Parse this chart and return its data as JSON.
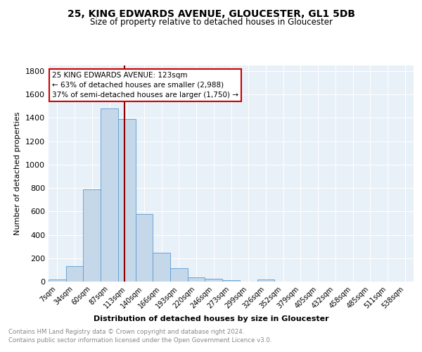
{
  "title1": "25, KING EDWARDS AVENUE, GLOUCESTER, GL1 5DB",
  "title2": "Size of property relative to detached houses in Gloucester",
  "xlabel": "Distribution of detached houses by size in Gloucester",
  "ylabel": "Number of detached properties",
  "bin_labels": [
    "7sqm",
    "34sqm",
    "60sqm",
    "87sqm",
    "113sqm",
    "140sqm",
    "166sqm",
    "193sqm",
    "220sqm",
    "246sqm",
    "273sqm",
    "299sqm",
    "326sqm",
    "352sqm",
    "379sqm",
    "405sqm",
    "432sqm",
    "458sqm",
    "485sqm",
    "511sqm",
    "538sqm"
  ],
  "bar_heights": [
    20,
    135,
    790,
    1480,
    1390,
    575,
    248,
    115,
    35,
    25,
    15,
    0,
    20,
    0,
    0,
    0,
    0,
    0,
    0,
    0,
    0
  ],
  "bar_color": "#c5d8ea",
  "bar_edge_color": "#5b9bd5",
  "subject_line_color": "#8b0000",
  "annotation_line1": "25 KING EDWARDS AVENUE: 123sqm",
  "annotation_line2": "← 63% of detached houses are smaller (2,988)",
  "annotation_line3": "37% of semi-detached houses are larger (1,750) →",
  "annotation_box_color": "#ffffff",
  "annotation_box_edge": "#cc0000",
  "ylim": [
    0,
    1850
  ],
  "yticks": [
    0,
    200,
    400,
    600,
    800,
    1000,
    1200,
    1400,
    1600,
    1800
  ],
  "footer1": "Contains HM Land Registry data © Crown copyright and database right 2024.",
  "footer2": "Contains public sector information licensed under the Open Government Licence v3.0.",
  "bg_color": "#e8f0f8",
  "fig_bg_color": "#ffffff",
  "subject_sqm": 123,
  "bin_start_sqm": [
    7,
    34,
    60,
    87,
    113,
    140,
    166,
    193,
    220,
    246,
    273,
    299,
    326,
    352,
    379,
    405,
    432,
    458,
    485,
    511,
    538
  ]
}
